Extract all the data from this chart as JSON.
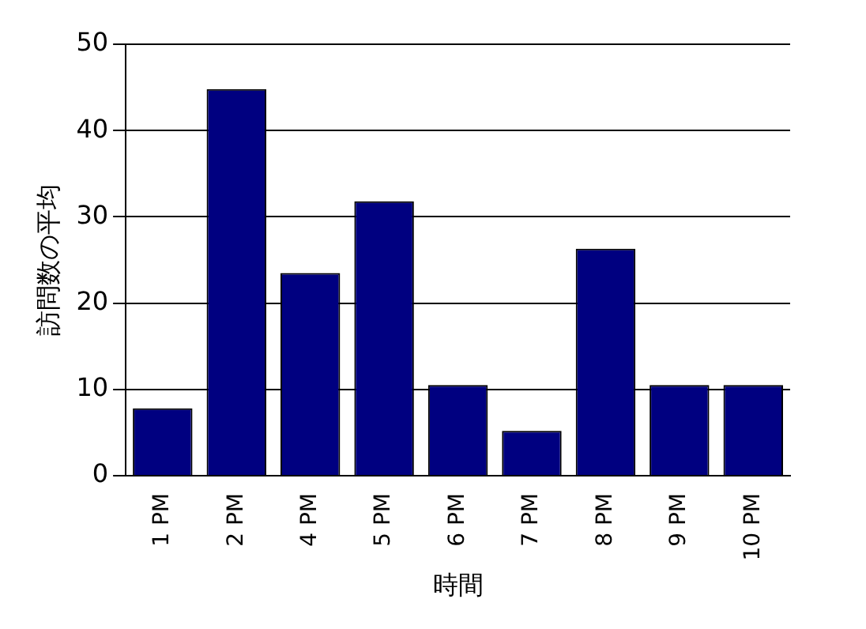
{
  "chart_data": {
    "type": "bar",
    "xlabel": "時間",
    "ylabel": "訪問数の平均",
    "categories": [
      "1 PM",
      "2 PM",
      "4 PM",
      "5 PM",
      "6 PM",
      "7 PM",
      "8 PM",
      "9 PM",
      "10 PM"
    ],
    "values": [
      7.8,
      44.8,
      23.5,
      31.8,
      10.5,
      5.2,
      26.3,
      10.5,
      10.5
    ],
    "color": "#000080",
    "ylim": [
      0,
      50
    ],
    "yticks": [
      0,
      10,
      20,
      30,
      40,
      50
    ],
    "grid": "y",
    "legend": false
  }
}
